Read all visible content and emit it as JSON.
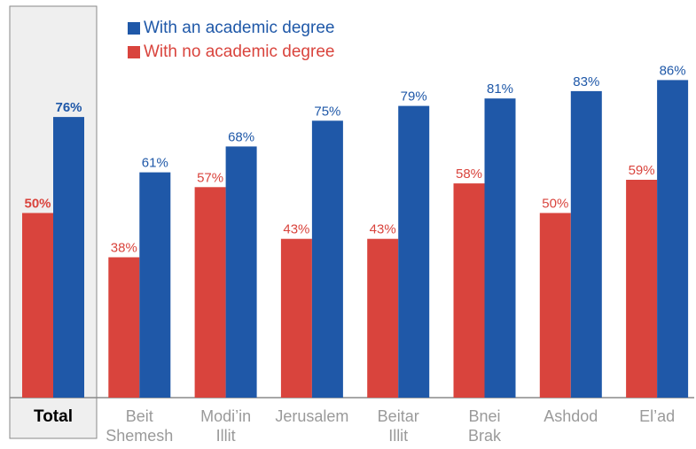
{
  "chart_data": {
    "type": "bar",
    "categories": [
      [
        "Total"
      ],
      [
        "Beit",
        "Shemesh"
      ],
      [
        "Modi’in",
        "Illit"
      ],
      [
        "Jerusalem"
      ],
      [
        "Beitar",
        "Illit"
      ],
      [
        "Bnei",
        "Brak"
      ],
      [
        "Ashdod"
      ],
      [
        "El’ad"
      ]
    ],
    "highlight_category": 0,
    "series": [
      {
        "name": "With no academic degree",
        "color": "#d9443d",
        "values": [
          50,
          38,
          57,
          43,
          43,
          58,
          50,
          59
        ],
        "labels": [
          "50%",
          "38%",
          "57%",
          "43%",
          "43%",
          "58%",
          "50%",
          "59%"
        ]
      },
      {
        "name": "With an academic degree",
        "color": "#1f58a8",
        "values": [
          76,
          61,
          68,
          75,
          79,
          81,
          83,
          86
        ],
        "labels": [
          "76%",
          "61%",
          "68%",
          "75%",
          "79%",
          "81%",
          "83%",
          "86%"
        ]
      }
    ],
    "ylim": [
      0,
      100
    ],
    "legend_position": "top-left",
    "grid": false
  },
  "legend": [
    {
      "label": "With an academic degree",
      "color": "#1f58a8"
    },
    {
      "label": "With no academic degree",
      "color": "#d9443d"
    }
  ]
}
